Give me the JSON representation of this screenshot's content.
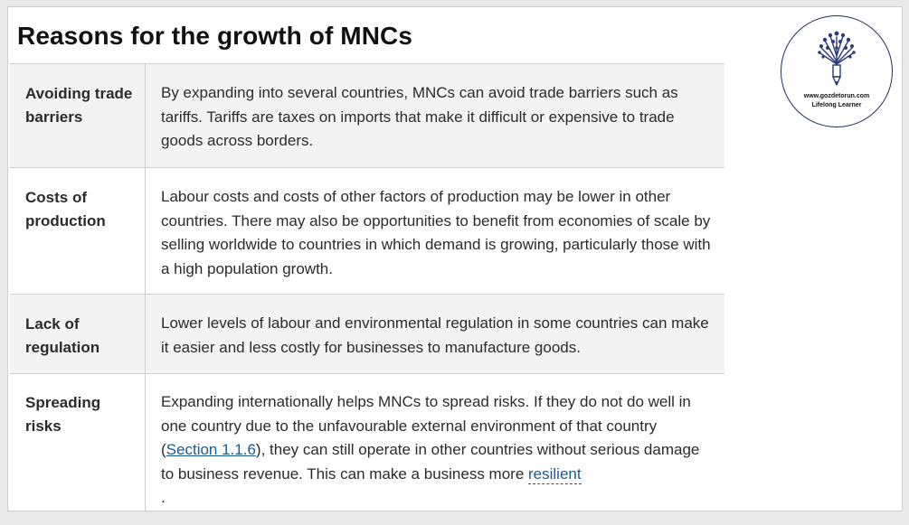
{
  "title": "Reasons for the growth of MNCs",
  "rows": [
    {
      "label": "Avoiding trade barriers",
      "text": "By expanding into several countries, MNCs can avoid trade barriers such as tariffs. Tariffs are taxes on imports that make it difficult or expensive to trade goods across borders."
    },
    {
      "label": "Costs of production",
      "text": "Labour costs and costs of other factors of production may be lower in other countries. There may also be opportunities to benefit from economies of scale by selling worldwide to countries in which demand is growing, particularly those with a high population growth."
    },
    {
      "label": "Lack of regulation",
      "text": "Lower levels of labour and environmental regulation in some countries can make it easier and less costly for businesses to manufacture goods."
    },
    {
      "label": "Spreading risks",
      "text_before": "Expanding internationally helps MNCs to spread risks. If they do not do well in one country due to the unfavourable external environment of that country (",
      "link": "Section 1.1.6",
      "text_middle": "), they can still operate in other countries without serious damage to business revenue. This can make a business more ",
      "term": "resilient",
      "text_after": "."
    }
  ],
  "logo": {
    "url": "www.gozdetorun.com",
    "tagline": "Lifelong Learner",
    "icon": "tree-pencil-icon",
    "color": "#2b3a7a"
  }
}
